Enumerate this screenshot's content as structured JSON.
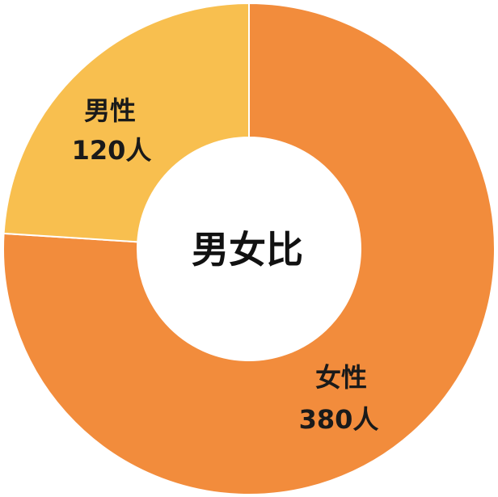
{
  "chart_data": {
    "type": "pie",
    "variant": "donut",
    "title": "男女比",
    "total": 500,
    "slices": [
      {
        "name": "女性",
        "value": 380,
        "value_label": "380人",
        "color": "#F28C3C"
      },
      {
        "name": "男性",
        "value": 120,
        "value_label": "120人",
        "color": "#F8BF4F"
      }
    ],
    "start_angle_deg": 0,
    "direction": "clockwise",
    "separator_color": "#ffffff"
  }
}
